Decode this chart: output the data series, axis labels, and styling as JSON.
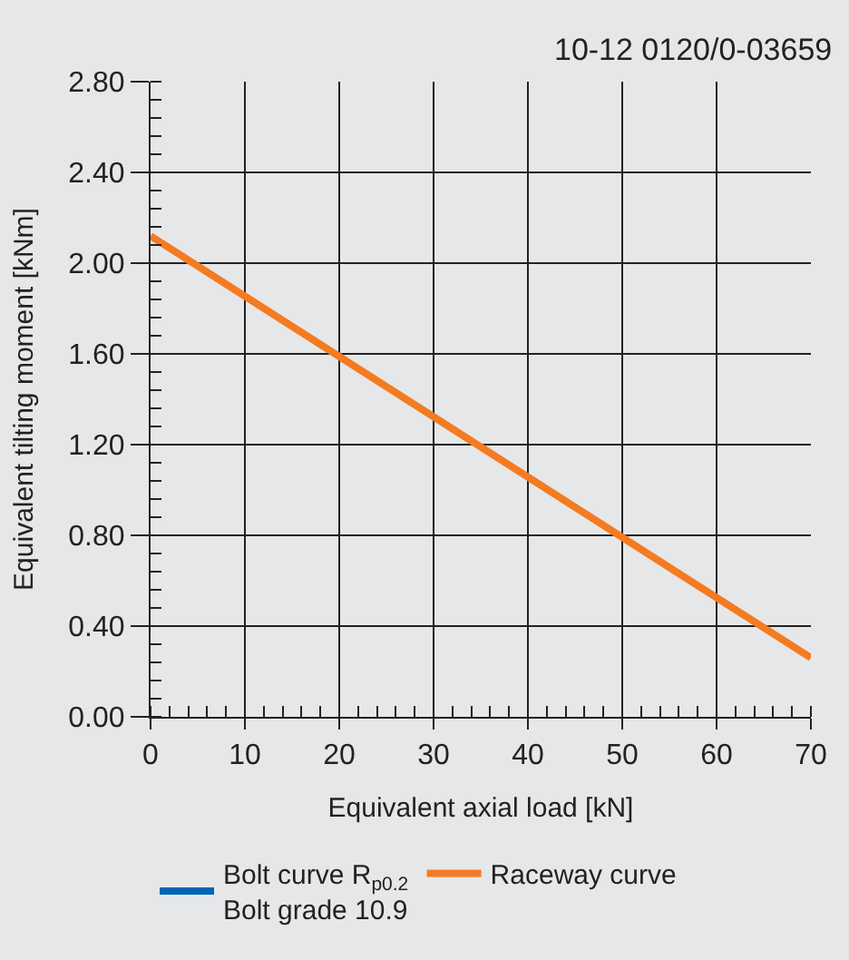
{
  "chart_data": {
    "type": "line",
    "title": "10-12 0120/0-03659",
    "xlabel": "Equivalent axial load [kN]",
    "ylabel": "Equivalent tilting moment [kNm]",
    "x": [
      0,
      70
    ],
    "series": [
      {
        "name": "Bolt curve R$_{p0.2}$\nBolt grade 10.9",
        "color": "#0066b3",
        "values": [
          null,
          null
        ]
      },
      {
        "name": "Raceway curve",
        "color": "#f47b20",
        "values": [
          2.12,
          0.26
        ]
      }
    ],
    "xlim": [
      0,
      70
    ],
    "xticks": [
      0,
      10,
      20,
      30,
      40,
      50,
      60,
      70
    ],
    "ylim": [
      0,
      2.8
    ],
    "yticks": [
      {
        "value": 0,
        "label": "0.00"
      },
      {
        "value": 0.4,
        "label": "0.40"
      },
      {
        "value": 0.8,
        "label": "0.80"
      },
      {
        "value": 1.2,
        "label": "1.20"
      },
      {
        "value": 1.6,
        "label": "1.60"
      },
      {
        "value": 2.0,
        "label": "2.00"
      },
      {
        "value": 2.4,
        "label": "2.40"
      },
      {
        "value": 2.8,
        "label": "2.80"
      }
    ],
    "grid": true,
    "legend": "bottom",
    "line_style": "solid",
    "marker": "none"
  }
}
